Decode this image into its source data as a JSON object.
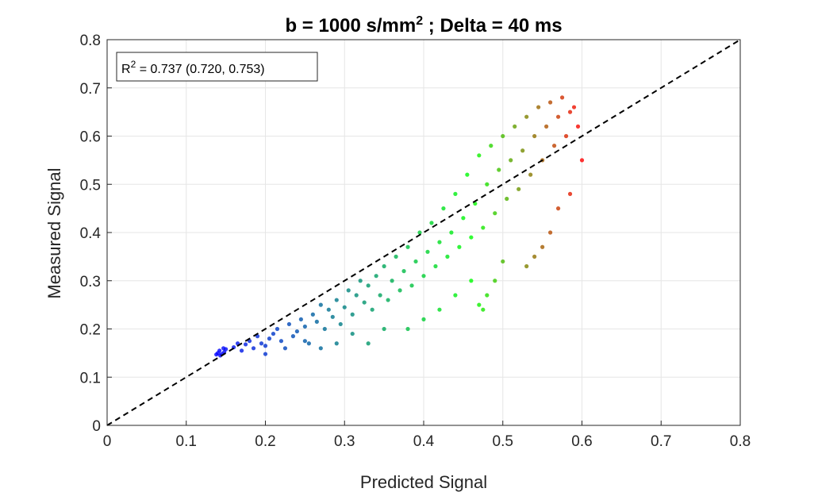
{
  "chart_data": {
    "type": "scatter",
    "title": "b = 1000 s/mm",
    "title_superscript": "2",
    "title_suffix": " ; Delta = 40 ms",
    "xlabel": "Predicted Signal",
    "ylabel": "Measured Signal",
    "xlim": [
      0,
      0.8
    ],
    "ylim": [
      0,
      0.8
    ],
    "xticks": [
      "0",
      "0.1",
      "0.2",
      "0.3",
      "0.4",
      "0.5",
      "0.6",
      "0.7",
      "0.8"
    ],
    "yticks": [
      "0",
      "0.1",
      "0.2",
      "0.3",
      "0.4",
      "0.5",
      "0.6",
      "0.7",
      "0.8"
    ],
    "grid": true,
    "annotation": {
      "prefix": "R",
      "superscript": "2",
      "suffix": " = 0.737 (0.720, 0.753)",
      "location": "top-left"
    },
    "reference_line": {
      "style": "dashed",
      "color": "#000000",
      "from": [
        0,
        0
      ],
      "to": [
        0.8,
        0.8
      ]
    },
    "colormap": {
      "low": "#0000ff",
      "mid": "#00ff00",
      "high": "#ff0000"
    },
    "series": [
      {
        "color_by": "value gradient",
        "points": [
          [
            0.14,
            0.15
          ],
          [
            0.145,
            0.148
          ],
          [
            0.142,
            0.155
          ],
          [
            0.148,
            0.152
          ],
          [
            0.138,
            0.147
          ],
          [
            0.15,
            0.158
          ],
          [
            0.143,
            0.145
          ],
          [
            0.147,
            0.16
          ],
          [
            0.16,
            0.162
          ],
          [
            0.165,
            0.17
          ],
          [
            0.17,
            0.155
          ],
          [
            0.175,
            0.168
          ],
          [
            0.18,
            0.175
          ],
          [
            0.185,
            0.16
          ],
          [
            0.19,
            0.185
          ],
          [
            0.195,
            0.17
          ],
          [
            0.2,
            0.165
          ],
          [
            0.205,
            0.18
          ],
          [
            0.21,
            0.19
          ],
          [
            0.2,
            0.148
          ],
          [
            0.215,
            0.2
          ],
          [
            0.22,
            0.175
          ],
          [
            0.225,
            0.16
          ],
          [
            0.23,
            0.21
          ],
          [
            0.235,
            0.185
          ],
          [
            0.24,
            0.195
          ],
          [
            0.245,
            0.22
          ],
          [
            0.25,
            0.205
          ],
          [
            0.255,
            0.17
          ],
          [
            0.26,
            0.23
          ],
          [
            0.265,
            0.215
          ],
          [
            0.27,
            0.25
          ],
          [
            0.275,
            0.2
          ],
          [
            0.28,
            0.24
          ],
          [
            0.285,
            0.225
          ],
          [
            0.29,
            0.26
          ],
          [
            0.295,
            0.21
          ],
          [
            0.3,
            0.245
          ],
          [
            0.305,
            0.28
          ],
          [
            0.31,
            0.23
          ],
          [
            0.315,
            0.27
          ],
          [
            0.32,
            0.3
          ],
          [
            0.325,
            0.255
          ],
          [
            0.33,
            0.29
          ],
          [
            0.335,
            0.24
          ],
          [
            0.34,
            0.31
          ],
          [
            0.345,
            0.27
          ],
          [
            0.35,
            0.33
          ],
          [
            0.355,
            0.26
          ],
          [
            0.36,
            0.3
          ],
          [
            0.365,
            0.35
          ],
          [
            0.37,
            0.28
          ],
          [
            0.375,
            0.32
          ],
          [
            0.38,
            0.37
          ],
          [
            0.385,
            0.29
          ],
          [
            0.39,
            0.34
          ],
          [
            0.395,
            0.4
          ],
          [
            0.4,
            0.31
          ],
          [
            0.405,
            0.36
          ],
          [
            0.41,
            0.42
          ],
          [
            0.415,
            0.33
          ],
          [
            0.42,
            0.38
          ],
          [
            0.425,
            0.45
          ],
          [
            0.43,
            0.35
          ],
          [
            0.435,
            0.4
          ],
          [
            0.44,
            0.48
          ],
          [
            0.445,
            0.37
          ],
          [
            0.45,
            0.43
          ],
          [
            0.455,
            0.52
          ],
          [
            0.46,
            0.39
          ],
          [
            0.465,
            0.46
          ],
          [
            0.47,
            0.56
          ],
          [
            0.475,
            0.41
          ],
          [
            0.48,
            0.5
          ],
          [
            0.485,
            0.58
          ],
          [
            0.49,
            0.44
          ],
          [
            0.495,
            0.53
          ],
          [
            0.5,
            0.6
          ],
          [
            0.505,
            0.47
          ],
          [
            0.51,
            0.55
          ],
          [
            0.515,
            0.62
          ],
          [
            0.52,
            0.49
          ],
          [
            0.525,
            0.57
          ],
          [
            0.53,
            0.64
          ],
          [
            0.535,
            0.52
          ],
          [
            0.54,
            0.6
          ],
          [
            0.545,
            0.66
          ],
          [
            0.55,
            0.55
          ],
          [
            0.555,
            0.62
          ],
          [
            0.56,
            0.67
          ],
          [
            0.565,
            0.58
          ],
          [
            0.57,
            0.64
          ],
          [
            0.575,
            0.68
          ],
          [
            0.58,
            0.6
          ],
          [
            0.585,
            0.65
          ],
          [
            0.59,
            0.66
          ],
          [
            0.595,
            0.62
          ],
          [
            0.6,
            0.55
          ],
          [
            0.585,
            0.48
          ],
          [
            0.57,
            0.45
          ],
          [
            0.56,
            0.4
          ],
          [
            0.55,
            0.37
          ],
          [
            0.54,
            0.35
          ],
          [
            0.53,
            0.33
          ],
          [
            0.475,
            0.24
          ],
          [
            0.47,
            0.25
          ],
          [
            0.48,
            0.27
          ],
          [
            0.49,
            0.3
          ],
          [
            0.5,
            0.34
          ],
          [
            0.38,
            0.2
          ],
          [
            0.4,
            0.22
          ],
          [
            0.42,
            0.24
          ],
          [
            0.33,
            0.17
          ],
          [
            0.31,
            0.19
          ],
          [
            0.29,
            0.17
          ],
          [
            0.27,
            0.16
          ],
          [
            0.25,
            0.175
          ],
          [
            0.35,
            0.2
          ],
          [
            0.44,
            0.27
          ],
          [
            0.46,
            0.3
          ]
        ]
      }
    ]
  }
}
